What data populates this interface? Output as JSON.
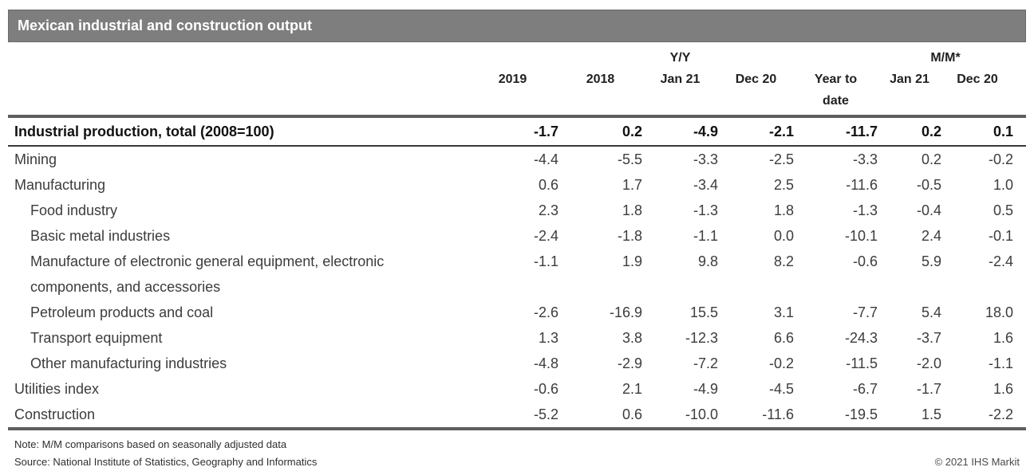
{
  "title": "Mexican industrial and construction output",
  "table": {
    "group_headers": {
      "yy": "Y/Y",
      "mm": "M/M*"
    },
    "columns": [
      "2019",
      "2018",
      "Jan 21",
      "Dec 20",
      "Year to\ndate",
      "Jan 21",
      "Dec 20"
    ]
  },
  "chart_data": {
    "type": "table",
    "title": "Mexican industrial and construction output",
    "columns": [
      "2019",
      "2018",
      "Y/Y Jan 21",
      "Y/Y Dec 20",
      "Year to date",
      "M/M Jan 21",
      "M/M Dec 20"
    ],
    "rows": [
      {
        "label": "Industrial production, total (2008=100)",
        "indent": 0,
        "bold": true,
        "values": [
          -1.7,
          0.2,
          -4.9,
          -2.1,
          -11.7,
          0.2,
          0.1
        ]
      },
      {
        "label": "Mining",
        "indent": 0,
        "bold": false,
        "values": [
          -4.4,
          -5.5,
          -3.3,
          -2.5,
          -3.3,
          0.2,
          -0.2
        ]
      },
      {
        "label": "Manufacturing",
        "indent": 0,
        "bold": false,
        "values": [
          0.6,
          1.7,
          -3.4,
          2.5,
          -11.6,
          -0.5,
          1.0
        ]
      },
      {
        "label": "Food industry",
        "indent": 1,
        "bold": false,
        "values": [
          2.3,
          1.8,
          -1.3,
          1.8,
          -1.3,
          -0.4,
          0.5
        ]
      },
      {
        "label": "Basic metal industries",
        "indent": 1,
        "bold": false,
        "values": [
          -2.4,
          -1.8,
          -1.1,
          0.0,
          -10.1,
          2.4,
          -0.1
        ]
      },
      {
        "label": "Manufacture of electronic general equipment, electronic components, and accessories",
        "indent": 1,
        "bold": false,
        "values": [
          -1.1,
          1.9,
          9.8,
          8.2,
          -0.6,
          5.9,
          -2.4
        ]
      },
      {
        "label": "Petroleum products and coal",
        "indent": 1,
        "bold": false,
        "values": [
          -2.6,
          -16.9,
          15.5,
          3.1,
          -7.7,
          5.4,
          18.0
        ]
      },
      {
        "label": "Transport equipment",
        "indent": 1,
        "bold": false,
        "values": [
          1.3,
          3.8,
          -12.3,
          6.6,
          -24.3,
          -3.7,
          1.6
        ]
      },
      {
        "label": "Other manufacturing industries",
        "indent": 1,
        "bold": false,
        "values": [
          -4.8,
          -2.9,
          -7.2,
          -0.2,
          -11.5,
          -2.0,
          -1.1
        ]
      },
      {
        "label": "Utilities index",
        "indent": 0,
        "bold": false,
        "values": [
          -0.6,
          2.1,
          -4.9,
          -4.5,
          -6.7,
          -1.7,
          1.6
        ]
      },
      {
        "label": "Construction",
        "indent": 0,
        "bold": false,
        "values": [
          -5.2,
          0.6,
          -10.0,
          -11.6,
          -19.5,
          1.5,
          -2.2
        ]
      }
    ]
  },
  "colors": {
    "title_bar_bg": "#7e7e7e",
    "title_bar_border": "#6a6a6a",
    "rule_gray": "#5e5e5e",
    "text_dark": "#212121"
  },
  "footer": {
    "note": "Note: M/M comparisons based on seasonally adjusted data",
    "source": "Source: National Institute of Statistics, Geography and Informatics",
    "copyright": "© 2021 IHS Markit"
  }
}
